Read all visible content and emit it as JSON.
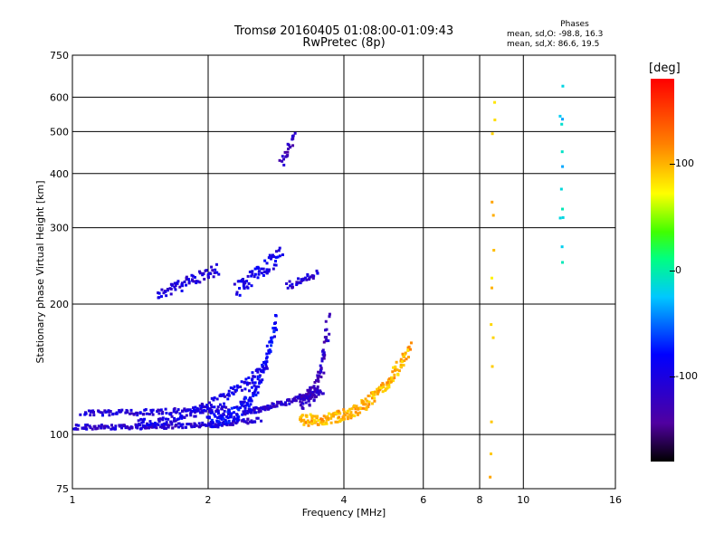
{
  "header": {
    "title_line1": "Tromsø 20160405 01:08:00-01:09:43",
    "title_line2": "RwPretec (8p)"
  },
  "phase_box": {
    "heading": "Phases",
    "line_o": "mean, sd,O: -98.8, 16.3",
    "line_x": "mean, sd,X:  86.6, 19.5"
  },
  "colorbar": {
    "unit": "[deg]",
    "range": [
      -180,
      180
    ],
    "ticks": [
      "100",
      "0",
      "-100"
    ],
    "tick_values": [
      100,
      0,
      -100
    ]
  },
  "chart_data": {
    "type": "scatter",
    "xlabel": "Frequency [MHz]",
    "ylabel": "Stationary phase Virtual Height [km]",
    "xscale": "log",
    "yscale": "log",
    "xlim": [
      1,
      16
    ],
    "ylim": [
      75,
      750
    ],
    "xticks": [
      "1",
      "2",
      "4",
      "6",
      "8",
      "10",
      "16"
    ],
    "xtick_values": [
      1,
      2,
      4,
      6,
      8,
      10,
      16
    ],
    "yticks": [
      "75",
      "100",
      "200",
      "300",
      "400",
      "500",
      "600",
      "750"
    ],
    "ytick_values": [
      75,
      100,
      200,
      300,
      400,
      500,
      600,
      750
    ],
    "grid": true,
    "traces": [
      {
        "x0": 1.0,
        "x1": 2.6,
        "y0": 104,
        "y1": 108,
        "n": 180,
        "phase": -110,
        "spread": 0.012,
        "curve": 3
      },
      {
        "x0": 1.05,
        "x1": 2.2,
        "y0": 112,
        "y1": 115,
        "n": 110,
        "phase": -105,
        "spread": 0.015,
        "curve": 2
      },
      {
        "x0": 1.4,
        "x1": 2.7,
        "y0": 106,
        "y1": 145,
        "n": 140,
        "phase": -100,
        "spread": 0.03,
        "curve": 2
      },
      {
        "x0": 2.0,
        "x1": 2.85,
        "y0": 108,
        "y1": 185,
        "n": 160,
        "phase": -85,
        "spread": 0.04,
        "curve": 3
      },
      {
        "x0": 2.4,
        "x1": 3.6,
        "y0": 112,
        "y1": 125,
        "n": 110,
        "phase": -110,
        "spread": 0.015,
        "curve": 1
      },
      {
        "x0": 3.2,
        "x1": 3.7,
        "y0": 120,
        "y1": 185,
        "n": 90,
        "phase": -120,
        "spread": 0.05,
        "curve": 3
      },
      {
        "x0": 3.2,
        "x1": 5.6,
        "y0": 108,
        "y1": 160,
        "n": 220,
        "phase": 100,
        "spread": 0.03,
        "curve": 3
      },
      {
        "x0": 1.55,
        "x1": 2.1,
        "y0": 210,
        "y1": 240,
        "n": 70,
        "phase": -105,
        "spread": 0.03,
        "curve": 1
      },
      {
        "x0": 2.3,
        "x1": 2.9,
        "y0": 215,
        "y1": 260,
        "n": 70,
        "phase": -95,
        "spread": 0.04,
        "curve": 1
      },
      {
        "x0": 3.0,
        "x1": 3.5,
        "y0": 220,
        "y1": 235,
        "n": 30,
        "phase": -110,
        "spread": 0.02,
        "curve": 1
      },
      {
        "x0": 2.9,
        "x1": 3.1,
        "y0": 420,
        "y1": 490,
        "n": 22,
        "phase": -120,
        "spread": 0.02,
        "curve": 1
      },
      {
        "x0": 8.5,
        "x1": 8.6,
        "y0": 80,
        "y1": 600,
        "n": 14,
        "phase": 90,
        "spread": 0.12,
        "curve": 1
      },
      {
        "x0": 12.1,
        "x1": 12.2,
        "y0": 250,
        "y1": 620,
        "n": 12,
        "phase": -20,
        "spread": 0.1,
        "curve": 1
      }
    ]
  }
}
